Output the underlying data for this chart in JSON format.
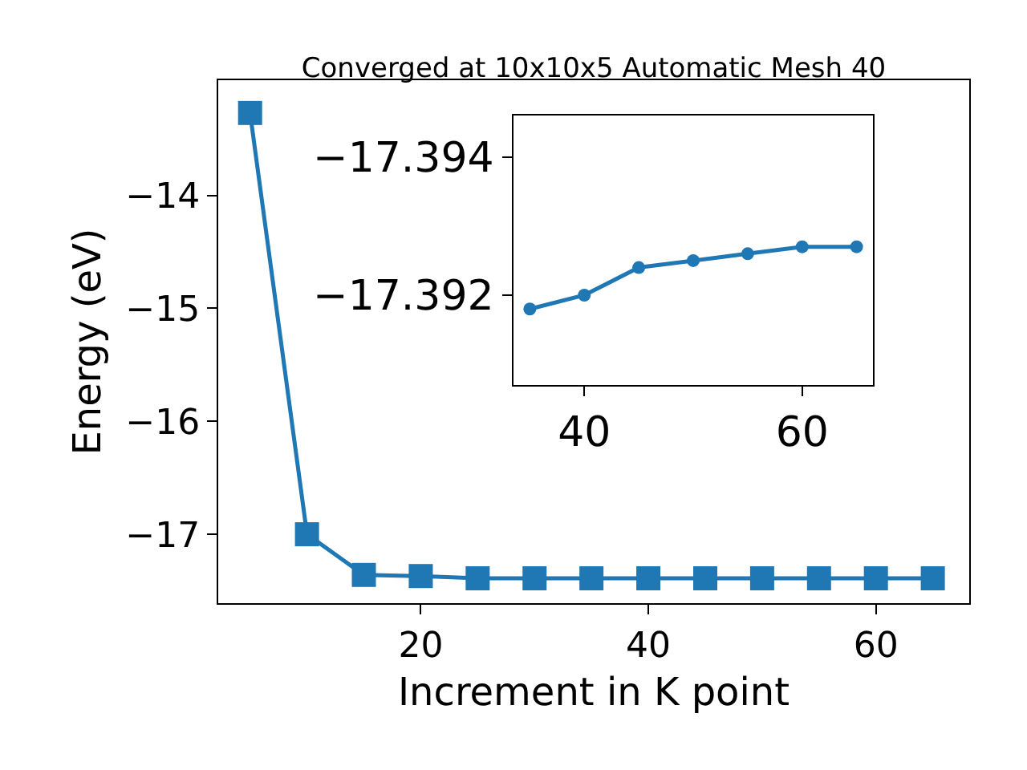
{
  "chart_data": [
    {
      "type": "line",
      "title": "Converged at 10x10x5 Automatic Mesh 40",
      "xlabel": "Increment in K point",
      "ylabel": "Energy (eV)",
      "x": [
        5,
        10,
        15,
        20,
        25,
        30,
        35,
        40,
        45,
        50,
        55,
        60,
        65
      ],
      "series": [
        {
          "color": "#1f77b4",
          "values": [
            -13.27,
            -17.0,
            -17.36,
            -17.37,
            -17.39,
            -17.39,
            -17.39,
            -17.39,
            -17.39,
            -17.39,
            -17.39,
            -17.39,
            -17.39
          ]
        }
      ],
      "xlim": [
        2.2,
        68.2
      ],
      "ylim": [
        -17.61,
        -12.98
      ],
      "xticks": [
        20,
        40,
        60
      ],
      "yticks": [
        -17,
        -16,
        -15,
        -14
      ],
      "marker": "square",
      "line_style": "solid"
    },
    {
      "type": "line",
      "x": [
        35,
        40,
        45,
        50,
        55,
        60,
        65
      ],
      "series": [
        {
          "color": "#1f77b4",
          "values": [
            -17.3918,
            -17.392,
            -17.3924,
            -17.3925,
            -17.3926,
            -17.3927,
            -17.3927
          ]
        }
      ],
      "xlim": [
        33.5,
        66.5
      ],
      "ylim": [
        -17.3907,
        -17.3946
      ],
      "xticks": [
        40,
        60
      ],
      "yticks": [
        -17.394,
        -17.392
      ],
      "marker": "circle",
      "line_style": "solid"
    }
  ]
}
